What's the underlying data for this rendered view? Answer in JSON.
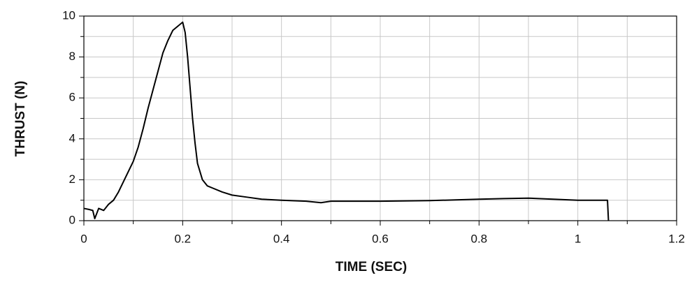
{
  "chart_data": {
    "type": "line",
    "x_label": "TIME (SEC)",
    "y_label": "THRUST (N)",
    "x": [
      0,
      0.01,
      0.018,
      0.022,
      0.03,
      0.04,
      0.05,
      0.06,
      0.07,
      0.08,
      0.09,
      0.1,
      0.11,
      0.12,
      0.13,
      0.14,
      0.15,
      0.16,
      0.17,
      0.18,
      0.19,
      0.2,
      0.205,
      0.21,
      0.215,
      0.22,
      0.225,
      0.23,
      0.24,
      0.25,
      0.26,
      0.28,
      0.3,
      0.33,
      0.36,
      0.4,
      0.45,
      0.48,
      0.5,
      0.6,
      0.7,
      0.8,
      0.85,
      0.9,
      0.95,
      1.0,
      1.06,
      1.062
    ],
    "series": [
      {
        "color": "#000000",
        "values": [
          0.6,
          0.55,
          0.5,
          0.1,
          0.6,
          0.5,
          0.8,
          1.0,
          1.4,
          1.9,
          2.4,
          2.9,
          3.6,
          4.5,
          5.5,
          6.4,
          7.3,
          8.2,
          8.8,
          9.3,
          9.5,
          9.7,
          9.2,
          8.0,
          6.5,
          5.0,
          3.8,
          2.8,
          2.0,
          1.7,
          1.6,
          1.4,
          1.25,
          1.15,
          1.05,
          1.0,
          0.95,
          0.88,
          0.95,
          0.95,
          0.98,
          1.05,
          1.08,
          1.1,
          1.05,
          1.0,
          1.0,
          0.0
        ]
      }
    ],
    "xlim": [
      0,
      1.2
    ],
    "ylim": [
      0,
      10
    ],
    "xticks": [
      0,
      0.2,
      0.4,
      0.6,
      0.8,
      1,
      1.2
    ],
    "yticks": [
      0,
      2,
      4,
      6,
      8,
      10
    ],
    "x_minor_ticks": [
      0.1,
      0.3,
      0.5,
      0.7,
      0.9,
      1.1
    ],
    "y_minor_ticks": [
      1,
      3,
      5,
      7,
      9
    ],
    "grid": true
  }
}
